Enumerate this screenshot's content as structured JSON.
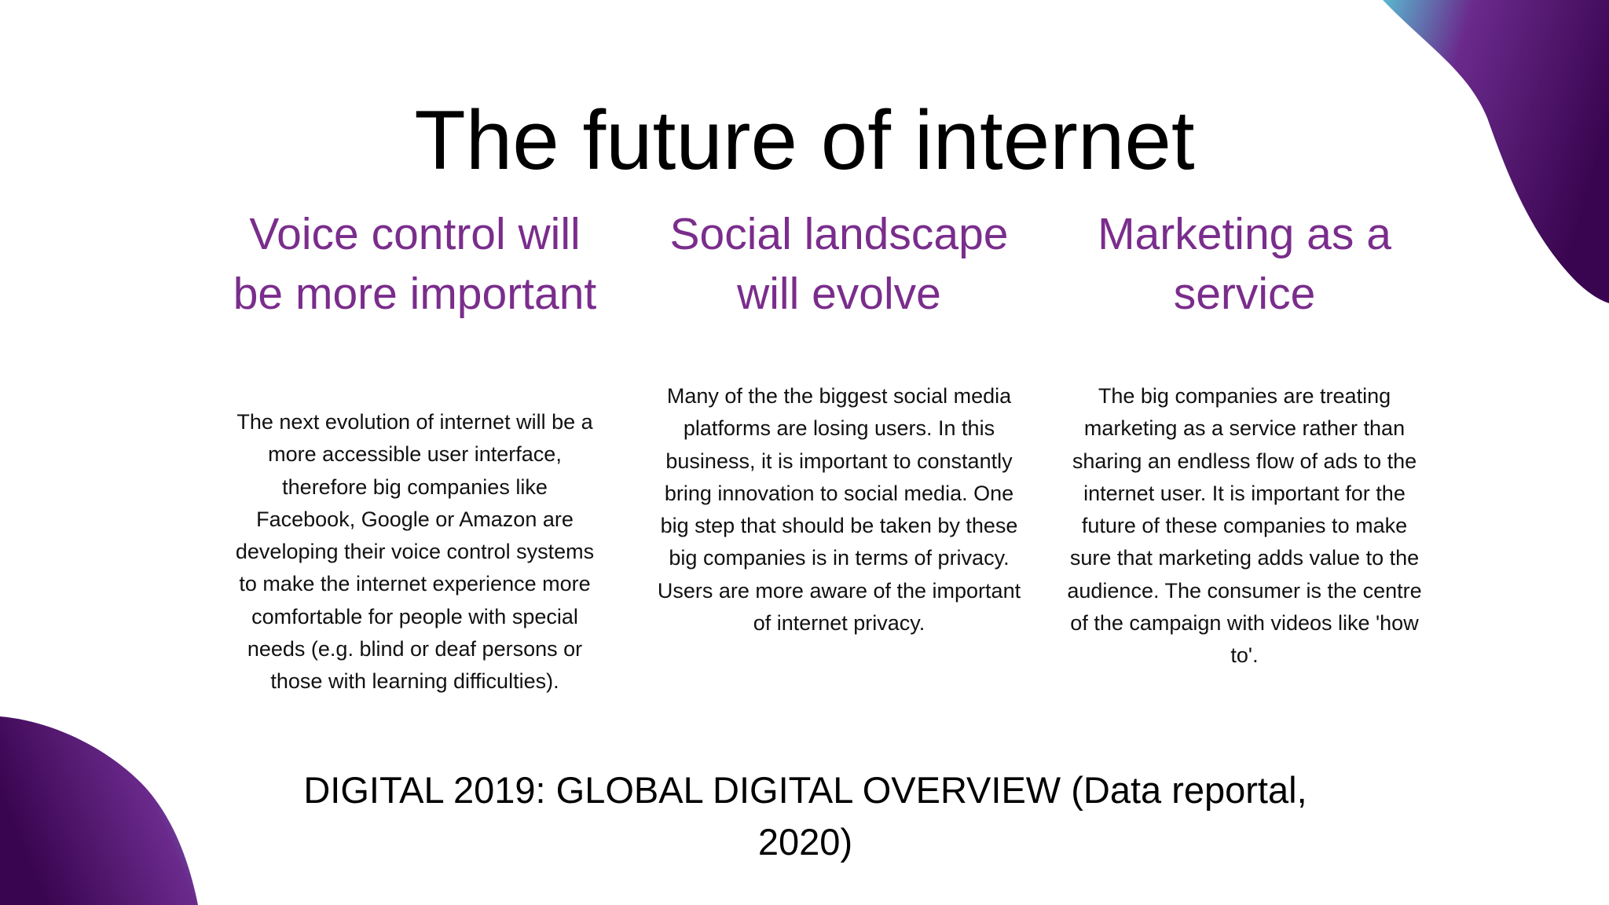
{
  "slide": {
    "title": "The future of internet",
    "columns": [
      {
        "heading": "Voice control will be more important",
        "body": "The next evolution of internet will be a more accessible user interface, therefore big companies like Facebook, Google or Amazon are developing their voice control systems to make the internet experience more comfortable for people with special needs (e.g. blind or deaf persons or those with learning difficulties)."
      },
      {
        "heading": "Social landscape will evolve",
        "body": "Many of the the biggest social media platforms are losing users. In this business, it is important to constantly bring innovation to  social media. One big step that should be taken by these big companies is in terms of privacy. Users are more aware of the important of internet privacy."
      },
      {
        "heading": "Marketing as a service",
        "body": "The big companies are treating marketing as a service rather than sharing an endless flow of ads to the internet user. It is important for the future of these companies to make sure that marketing adds value to the audience. The consumer  is the centre of the campaign with videos like 'how to'."
      }
    ],
    "source": "DIGITAL 2019: GLOBAL DIGITAL OVERVIEW (Data reportal, 2020)"
  },
  "colors": {
    "heading": "#7a2d8c",
    "blob_dark": "#4a0a5e",
    "blob_light": "#5ab8d0"
  }
}
